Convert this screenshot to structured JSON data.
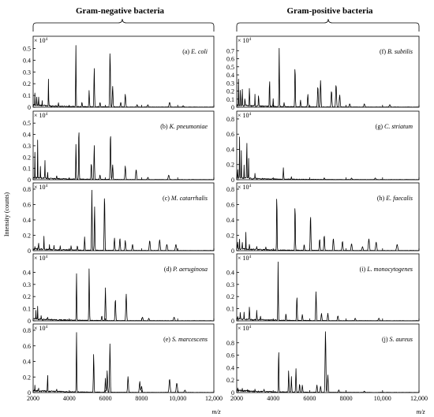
{
  "figure": {
    "left_title": "Gram-negative bacteria",
    "right_title": "Gram-positive bacteria",
    "ylabel": "Intensity (counts)",
    "xunit": "m/z",
    "multiplier": "× 10",
    "multiplier_exp": "4"
  },
  "chart_data": {
    "type": "line",
    "xlim": [
      2000,
      12000
    ],
    "x_ticks": [
      "2000",
      "4000",
      "6000",
      "8000",
      "10,000",
      "12,000"
    ],
    "panels": [
      {
        "id": "a",
        "col": 0,
        "row": 0,
        "label_prefix": "(a)",
        "species": "E. coli",
        "ylim": [
          0,
          0.55
        ],
        "yticks": [
          "0",
          "0.1",
          "0.2",
          "0.3",
          "0.4",
          "0.5"
        ],
        "peaks": [
          [
            2100,
            0.12
          ],
          [
            2200,
            0.14
          ],
          [
            2300,
            0.12
          ],
          [
            2500,
            0.05
          ],
          [
            2850,
            0.25
          ],
          [
            3400,
            0.03
          ],
          [
            4365,
            0.52
          ],
          [
            4700,
            0.04
          ],
          [
            5100,
            0.14
          ],
          [
            5380,
            0.34
          ],
          [
            5700,
            0.04
          ],
          [
            6255,
            0.47
          ],
          [
            6400,
            0.18
          ],
          [
            6850,
            0.04
          ],
          [
            7100,
            0.11
          ],
          [
            7750,
            0.02
          ],
          [
            8350,
            0.02
          ],
          [
            9550,
            0.04
          ],
          [
            10300,
            0.01
          ]
        ]
      },
      {
        "id": "b",
        "col": 0,
        "row": 1,
        "label_prefix": "(b)",
        "species": "K. pneumoniae",
        "ylim": [
          0,
          0.55
        ],
        "yticks": [
          "0",
          "0.1",
          "0.2",
          "0.3",
          "0.4",
          "0.5"
        ],
        "peaks": [
          [
            2100,
            0.27
          ],
          [
            2250,
            0.33
          ],
          [
            2400,
            0.12
          ],
          [
            2650,
            0.18
          ],
          [
            2800,
            0.08
          ],
          [
            3300,
            0.03
          ],
          [
            4370,
            0.33
          ],
          [
            4530,
            0.5
          ],
          [
            5220,
            0.15
          ],
          [
            5380,
            0.31
          ],
          [
            5700,
            0.04
          ],
          [
            6280,
            0.42
          ],
          [
            6400,
            0.13
          ],
          [
            7100,
            0.12
          ],
          [
            7700,
            0.09
          ],
          [
            8350,
            0.02
          ],
          [
            9500,
            0.04
          ]
        ]
      },
      {
        "id": "c",
        "col": 0,
        "row": 2,
        "label_prefix": "(c)",
        "species": "M. catarrhalis",
        "ylim": [
          0,
          0.8
        ],
        "yticks": [
          "0",
          "0.2",
          "0.4",
          "0.6",
          "0.8"
        ],
        "peaks": [
          [
            2100,
            0.05
          ],
          [
            2300,
            0.15
          ],
          [
            2600,
            0.18
          ],
          [
            2900,
            0.06
          ],
          [
            3150,
            0.06
          ],
          [
            3500,
            0.05
          ],
          [
            4100,
            0.06
          ],
          [
            4450,
            0.06
          ],
          [
            4850,
            0.18
          ],
          [
            5250,
            0.78
          ],
          [
            5400,
            0.58
          ],
          [
            5950,
            0.74
          ],
          [
            6500,
            0.16
          ],
          [
            6800,
            0.16
          ],
          [
            7100,
            0.13
          ],
          [
            7500,
            0.08
          ],
          [
            8450,
            0.13
          ],
          [
            9000,
            0.14
          ],
          [
            9400,
            0.08
          ],
          [
            9900,
            0.08
          ]
        ]
      },
      {
        "id": "d",
        "col": 0,
        "row": 3,
        "label_prefix": "(d)",
        "species": "P. aeruginosa",
        "ylim": [
          0,
          0.5
        ],
        "yticks": [
          "0",
          "0.1",
          "0.2",
          "0.3",
          "0.4"
        ],
        "peaks": [
          [
            2150,
            0.08
          ],
          [
            2250,
            0.11
          ],
          [
            2450,
            0.05
          ],
          [
            2800,
            0.03
          ],
          [
            4400,
            0.4
          ],
          [
            5100,
            0.44
          ],
          [
            5800,
            0.04
          ],
          [
            6000,
            0.27
          ],
          [
            6550,
            0.18
          ],
          [
            7150,
            0.22
          ],
          [
            8050,
            0.03
          ],
          [
            8400,
            0.02
          ],
          [
            9800,
            0.03
          ]
        ]
      },
      {
        "id": "e",
        "col": 0,
        "row": 4,
        "label_prefix": "(e)",
        "species": "S. marcescens",
        "ylim": [
          0,
          0.8
        ],
        "yticks": [
          "0",
          "0.2",
          "0.4",
          "0.6",
          "0.8"
        ],
        "peaks": [
          [
            2100,
            0.08
          ],
          [
            2300,
            0.05
          ],
          [
            2800,
            0.32
          ],
          [
            3300,
            0.04
          ],
          [
            4400,
            0.8
          ],
          [
            5350,
            0.5
          ],
          [
            6000,
            0.18
          ],
          [
            6100,
            0.28
          ],
          [
            6250,
            0.62
          ],
          [
            7250,
            0.2
          ],
          [
            7900,
            0.14
          ],
          [
            8000,
            0.08
          ],
          [
            9550,
            0.17
          ],
          [
            9950,
            0.12
          ],
          [
            10400,
            0.03
          ]
        ]
      },
      {
        "id": "f",
        "col": 1,
        "row": 0,
        "label_prefix": "(f)",
        "species": "B. subtilis",
        "ylim": [
          0,
          0.8
        ],
        "yticks": [
          "0",
          "0.1",
          "0.2",
          "0.3",
          "0.4",
          "0.5",
          "0.6",
          "0.7"
        ],
        "peaks": [
          [
            2100,
            0.4
          ],
          [
            2200,
            0.38
          ],
          [
            2300,
            0.38
          ],
          [
            2450,
            0.15
          ],
          [
            2700,
            0.35
          ],
          [
            3000,
            0.15
          ],
          [
            3200,
            0.18
          ],
          [
            3800,
            0.38
          ],
          [
            4000,
            0.1
          ],
          [
            4330,
            0.74
          ],
          [
            4600,
            0.05
          ],
          [
            5200,
            0.52
          ],
          [
            5500,
            0.08
          ],
          [
            5900,
            0.16
          ],
          [
            6450,
            0.26
          ],
          [
            6600,
            0.33
          ],
          [
            7200,
            0.2
          ],
          [
            7450,
            0.28
          ],
          [
            7650,
            0.15
          ],
          [
            8200,
            0.04
          ],
          [
            9000,
            0.04
          ],
          [
            10400,
            0.03
          ]
        ]
      },
      {
        "id": "g",
        "col": 1,
        "row": 1,
        "label_prefix": "(g)",
        "species": "C. striatum",
        "ylim": [
          0,
          0.82
        ],
        "yticks": [
          "0",
          "0.2",
          "0.4",
          "0.6",
          "0.8"
        ],
        "peaks": [
          [
            2050,
            0.25
          ],
          [
            2150,
            0.65
          ],
          [
            2250,
            0.35
          ],
          [
            2400,
            0.2
          ],
          [
            2550,
            0.78
          ],
          [
            2650,
            0.3
          ],
          [
            3000,
            0.07
          ],
          [
            4560,
            0.15
          ],
          [
            5000,
            0.03
          ],
          [
            6800,
            0.02
          ],
          [
            8300,
            0.02
          ],
          [
            9600,
            0.02
          ]
        ]
      },
      {
        "id": "h",
        "col": 1,
        "row": 2,
        "label_prefix": "(h)",
        "species": "E. faecalis",
        "ylim": [
          0,
          0.8
        ],
        "yticks": [
          "0",
          "0.2",
          "0.4",
          "0.6",
          "0.8"
        ],
        "peaks": [
          [
            2050,
            0.2
          ],
          [
            2150,
            0.15
          ],
          [
            2300,
            0.18
          ],
          [
            2500,
            0.22
          ],
          [
            2700,
            0.1
          ],
          [
            3100,
            0.05
          ],
          [
            3600,
            0.04
          ],
          [
            4200,
            0.8
          ],
          [
            5200,
            0.61
          ],
          [
            5700,
            0.08
          ],
          [
            6050,
            0.47
          ],
          [
            6550,
            0.15
          ],
          [
            6800,
            0.2
          ],
          [
            7300,
            0.16
          ],
          [
            7800,
            0.12
          ],
          [
            8300,
            0.09
          ],
          [
            8900,
            0.05
          ],
          [
            9250,
            0.15
          ],
          [
            9650,
            0.11
          ],
          [
            10800,
            0.08
          ]
        ]
      },
      {
        "id": "i",
        "col": 1,
        "row": 3,
        "label_prefix": "(i)",
        "species": "L. monocytogenes",
        "ylim": [
          0,
          0.5
        ],
        "yticks": [
          "0",
          "0.1",
          "0.2",
          "0.3",
          "0.4"
        ],
        "peaks": [
          [
            2050,
            0.05
          ],
          [
            2200,
            0.1
          ],
          [
            2400,
            0.06
          ],
          [
            2700,
            0.16
          ],
          [
            3100,
            0.08
          ],
          [
            3300,
            0.04
          ],
          [
            4270,
            0.48
          ],
          [
            4700,
            0.06
          ],
          [
            5300,
            0.21
          ],
          [
            5600,
            0.05
          ],
          [
            6350,
            0.24
          ],
          [
            6650,
            0.06
          ],
          [
            7000,
            0.06
          ],
          [
            7550,
            0.04
          ],
          [
            8500,
            0.02
          ],
          [
            9800,
            0.02
          ]
        ]
      },
      {
        "id": "j",
        "col": 1,
        "row": 4,
        "label_prefix": "(j)",
        "species": "S. aureus",
        "ylim": [
          0,
          1.0
        ],
        "yticks": [
          "0",
          "0.2",
          "0.4",
          "0.6",
          "0.8"
        ],
        "peaks": [
          [
            2050,
            0.06
          ],
          [
            2300,
            0.05
          ],
          [
            2600,
            0.03
          ],
          [
            3000,
            0.04
          ],
          [
            3500,
            0.04
          ],
          [
            4300,
            0.75
          ],
          [
            4850,
            0.35
          ],
          [
            5000,
            0.25
          ],
          [
            5250,
            0.38
          ],
          [
            5450,
            0.14
          ],
          [
            5600,
            0.12
          ],
          [
            6400,
            0.12
          ],
          [
            6600,
            0.1
          ],
          [
            6870,
            1.0
          ],
          [
            7000,
            0.28
          ],
          [
            7600,
            0.04
          ],
          [
            9000,
            0.02
          ]
        ]
      }
    ]
  }
}
